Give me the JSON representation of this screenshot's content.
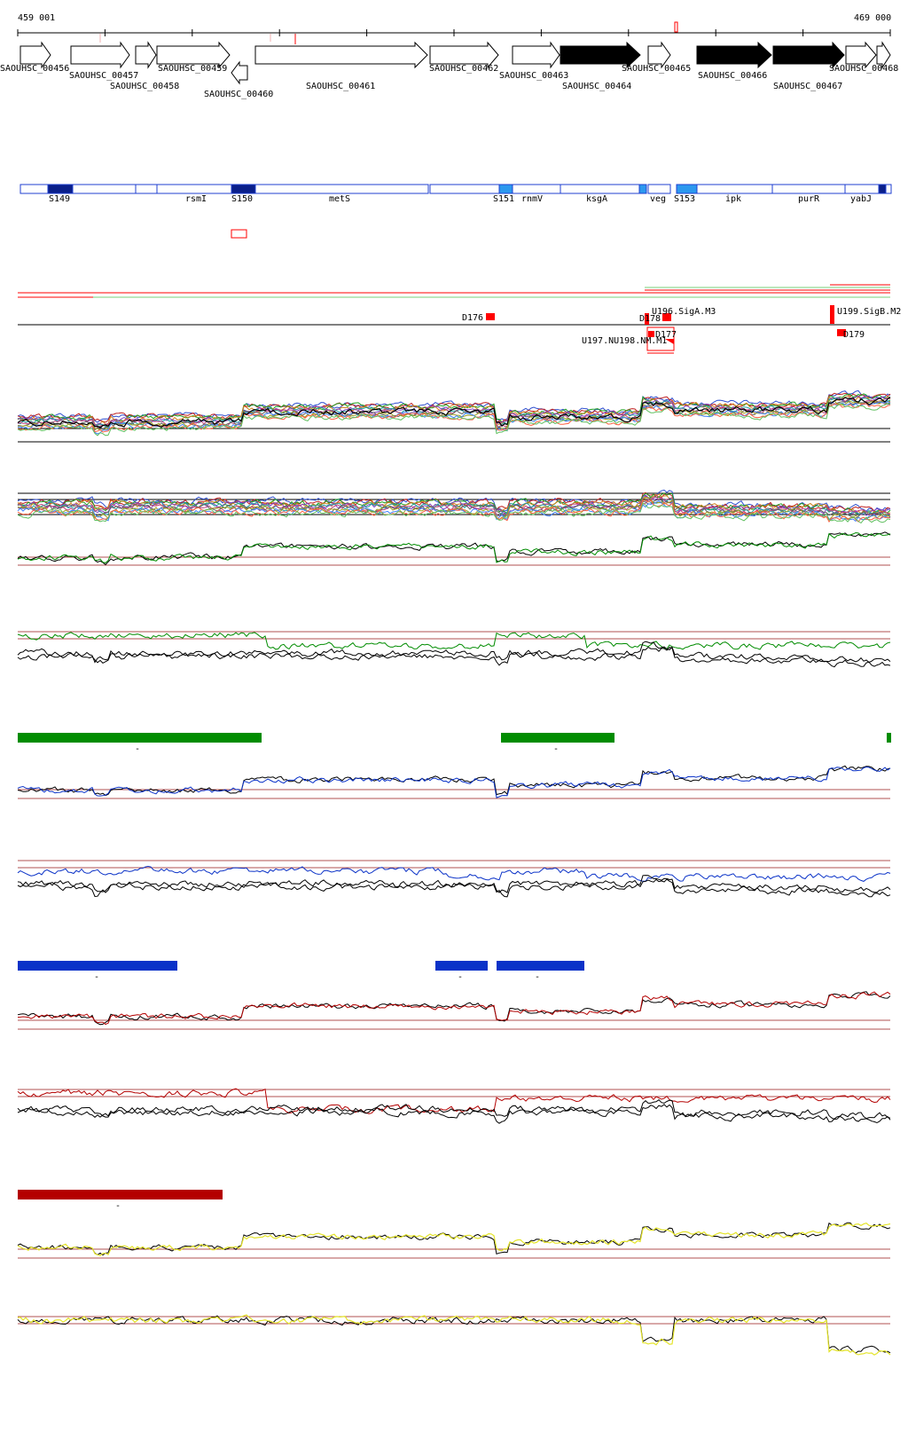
{
  "coordinates": {
    "start": "459 001",
    "end": "469 000"
  },
  "colors": {
    "gene_outline": "#000000",
    "gene_filled": "#000000",
    "segment_outline": "#1f3fd0",
    "segment_dark": "#0a1f8a",
    "segment_light": "#2c98ee",
    "feature_red": "#ff0000",
    "track_green": "#008c00",
    "track_blue": "#0a32c8",
    "track_red": "#b40000",
    "track_yellow": "#e4e42a",
    "baseline_brown": "#b05050"
  },
  "genes": [
    {
      "id": "SAOUHSC_00456",
      "filled": false
    },
    {
      "id": "SAOUHSC_00457",
      "filled": false
    },
    {
      "id": "SAOUHSC_00458",
      "filled": false
    },
    {
      "id": "SAOUHSC_00459",
      "filled": false
    },
    {
      "id": "SAOUHSC_00460",
      "filled": false
    },
    {
      "id": "SAOUHSC_00461",
      "filled": false
    },
    {
      "id": "SAOUHSC_00462",
      "filled": false
    },
    {
      "id": "SAOUHSC_00463",
      "filled": false
    },
    {
      "id": "SAOUHSC_00464",
      "filled": true
    },
    {
      "id": "SAOUHSC_00465",
      "filled": false
    },
    {
      "id": "SAOUHSC_00466",
      "filled": true
    },
    {
      "id": "SAOUHSC_00467",
      "filled": true
    },
    {
      "id": "SAOUHSC_00468",
      "filled": false
    }
  ],
  "segments": {
    "labels": [
      "S149",
      "rsmI",
      "S150",
      "metS",
      "S151",
      "rnmV",
      "ksgA",
      "veg",
      "S153",
      "ipk",
      "purR",
      "yabJ"
    ]
  },
  "features": {
    "labels": [
      "U196.SigA.M3",
      "U199.SigB.M2",
      "D176",
      "D178",
      "D177",
      "D179",
      "U197.NU198.NM.M1"
    ]
  },
  "condition_blocks": {
    "green": [
      "-",
      "-"
    ],
    "blue": [
      "-",
      "-",
      "-"
    ],
    "red": [
      "-"
    ]
  }
}
